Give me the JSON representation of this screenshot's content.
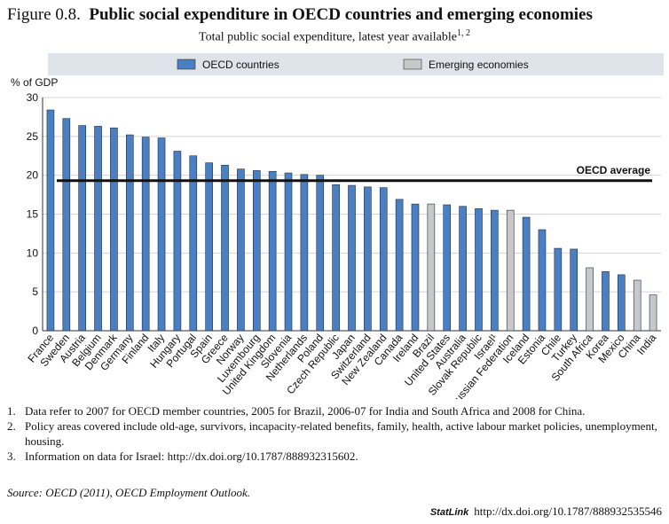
{
  "chart_data": {
    "type": "bar",
    "figure_label": "Figure 0.8.",
    "title": "Public social expenditure in OECD countries and emerging economies",
    "subtitle": "Total public social expenditure, latest year available",
    "subtitle_note": "1, 2",
    "y_label": "% of GDP",
    "categories": [
      "France",
      "Sweden",
      "Austria",
      "Belgium",
      "Denmark",
      "Germany",
      "Finland",
      "Italy",
      "Hungary",
      "Portugal",
      "Spain",
      "Greece",
      "Norway",
      "Luxembourg",
      "United Kingdom",
      "Slovenia",
      "Netherlands",
      "Poland",
      "Czech Republic",
      "Japan",
      "Switzerland",
      "New Zealand",
      "Canada",
      "Ireland",
      "Brazil",
      "United States",
      "Australia",
      "Slovak Republic",
      "Israel¹",
      "Russian Federation",
      "Iceland",
      "Estonia",
      "Chile",
      "Turkey",
      "South Africa",
      "Korea",
      "Mexico",
      "China",
      "India"
    ],
    "series": [
      {
        "name": "OECD countries",
        "color": "#4a7fc3",
        "values": [
          28.4,
          27.3,
          26.4,
          26.3,
          26.1,
          25.2,
          24.9,
          24.8,
          23.1,
          22.5,
          21.6,
          21.3,
          20.8,
          20.6,
          20.5,
          20.3,
          20.1,
          20.0,
          18.8,
          18.7,
          18.5,
          18.4,
          16.9,
          16.3,
          null,
          16.2,
          16.0,
          15.7,
          15.5,
          null,
          14.6,
          13.0,
          10.6,
          10.5,
          null,
          7.6,
          7.2,
          null,
          null
        ]
      },
      {
        "name": "Emerging economies",
        "color": "#c8c8c8",
        "values": [
          null,
          null,
          null,
          null,
          null,
          null,
          null,
          null,
          null,
          null,
          null,
          null,
          null,
          null,
          null,
          null,
          null,
          null,
          null,
          null,
          null,
          null,
          null,
          null,
          16.3,
          null,
          null,
          null,
          null,
          15.5,
          null,
          null,
          null,
          null,
          8.1,
          null,
          null,
          6.5,
          4.6
        ]
      }
    ],
    "average": {
      "label": "OECD average",
      "value": 19.3
    },
    "ylim": [
      0,
      30
    ],
    "yticks": [
      0,
      5,
      10,
      15,
      20,
      25,
      30
    ],
    "grid": true
  },
  "notes": [
    {
      "number": "1.",
      "text": "Data refer to 2007 for OECD member countries, 2005 for Brazil, 2006-07 for India and South Africa and 2008 for China."
    },
    {
      "number": "2.",
      "text": "Policy areas covered include old-age, survivors, incapacity-related benefits, family, health, active labour market policies, unemployment, housing."
    },
    {
      "number": "3.",
      "text": "Information on data for Israel: http://dx.doi.org/10.1787/888932315602."
    }
  ],
  "source_label": "Source:",
  "source": "OECD (2011), OECD Employment Outlook.",
  "statlink": {
    "label": "StatLink",
    "url": "http://dx.doi.org/10.1787/888932535546"
  }
}
